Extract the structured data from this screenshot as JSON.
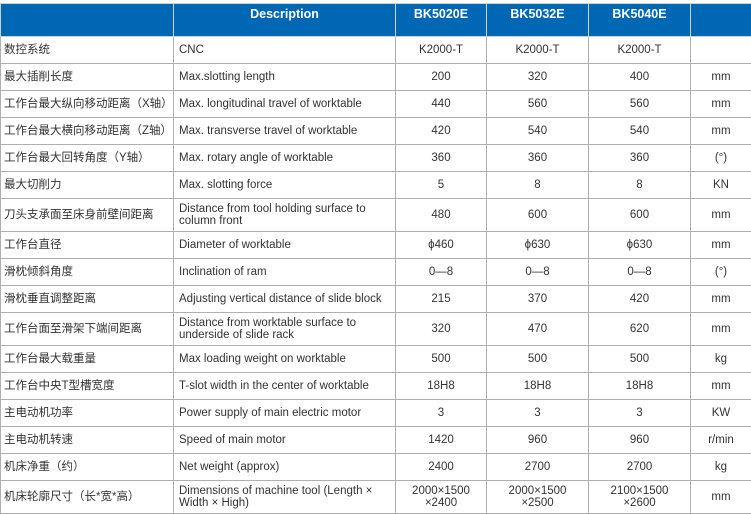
{
  "header": {
    "description": "Description",
    "models": [
      "BK5020E",
      "BK5032E",
      "BK5040E"
    ],
    "unit": ""
  },
  "rows": [
    {
      "zh": "数控系统",
      "en": "CNC",
      "v": [
        "K2000-T",
        "K2000-T",
        "K2000-T"
      ],
      "unit": ""
    },
    {
      "zh": "最大插削长度",
      "en": "Max.slotting length",
      "v": [
        "200",
        "320",
        "400"
      ],
      "unit": "mm"
    },
    {
      "zh": "工作台最大纵向移动距离（X轴）",
      "en": "Max. longitudinal travel of worktable",
      "v": [
        "440",
        "560",
        "560"
      ],
      "unit": "mm"
    },
    {
      "zh": "工作台最大横向移动距离（Z轴）",
      "en": "Max. transverse travel of worktable",
      "v": [
        "420",
        "540",
        "540"
      ],
      "unit": "mm"
    },
    {
      "zh": "工作台最大回转角度（Y轴）",
      "en": "Max. rotary angle of worktable",
      "v": [
        "360",
        "360",
        "360"
      ],
      "unit": "(°)"
    },
    {
      "zh": "最大切削力",
      "en": "Max. slotting force",
      "v": [
        "5",
        "8",
        "8"
      ],
      "unit": "KN"
    },
    {
      "zh": "刀头支承面至床身前壁间距离",
      "en": "Distance from tool holding surface to column front",
      "v": [
        "480",
        "600",
        "600"
      ],
      "unit": "mm",
      "tall": true
    },
    {
      "zh": "工作台直径",
      "en": "Diameter of worktable",
      "v": [
        "ϕ460",
        "ϕ630",
        "ϕ630"
      ],
      "unit": "mm"
    },
    {
      "zh": "滑枕倾斜角度",
      "en": "Inclination of ram",
      "v": [
        "0—8",
        "0—8",
        "0—8"
      ],
      "unit": "(°)"
    },
    {
      "zh": "滑枕垂直调整距离",
      "en": "Adjusting vertical distance of slide block",
      "v": [
        "215",
        "370",
        "420"
      ],
      "unit": "mm"
    },
    {
      "zh": "工作台面至滑架下端间距离",
      "en": "Distance from worktable surface to underside of slide rack",
      "v": [
        "320",
        "470",
        "620"
      ],
      "unit": "mm",
      "tall": true
    },
    {
      "zh": "工作台最大载重量",
      "en": "Max loading weight on worktable",
      "v": [
        "500",
        "500",
        "500"
      ],
      "unit": "kg"
    },
    {
      "zh": "工作台中央T型槽宽度",
      "en": "T-slot width in the center of worktable",
      "v": [
        "18H8",
        "18H8",
        "18H8"
      ],
      "unit": "mm"
    },
    {
      "zh": "主电动机功率",
      "en": "Power supply of main electric motor",
      "v": [
        "3",
        "3",
        "3"
      ],
      "unit": "KW"
    },
    {
      "zh": "主电动机转速",
      "en": "Speed of main motor",
      "v": [
        "1420",
        "960",
        "960"
      ],
      "unit": "r/min"
    },
    {
      "zh": "机床净重（约）",
      "en": "Net weight (approx)",
      "v": [
        "2400",
        "2700",
        "2700"
      ],
      "unit": "kg"
    },
    {
      "zh": "机床轮廓尺寸（长*宽*高）",
      "en": "Dimensions of machine tool (Length × Width × High)",
      "v": [
        "2000×1500 ×2400",
        "2000×1500 ×2500",
        "2100×1500 ×2600"
      ],
      "unit": "mm",
      "tall": true
    }
  ]
}
